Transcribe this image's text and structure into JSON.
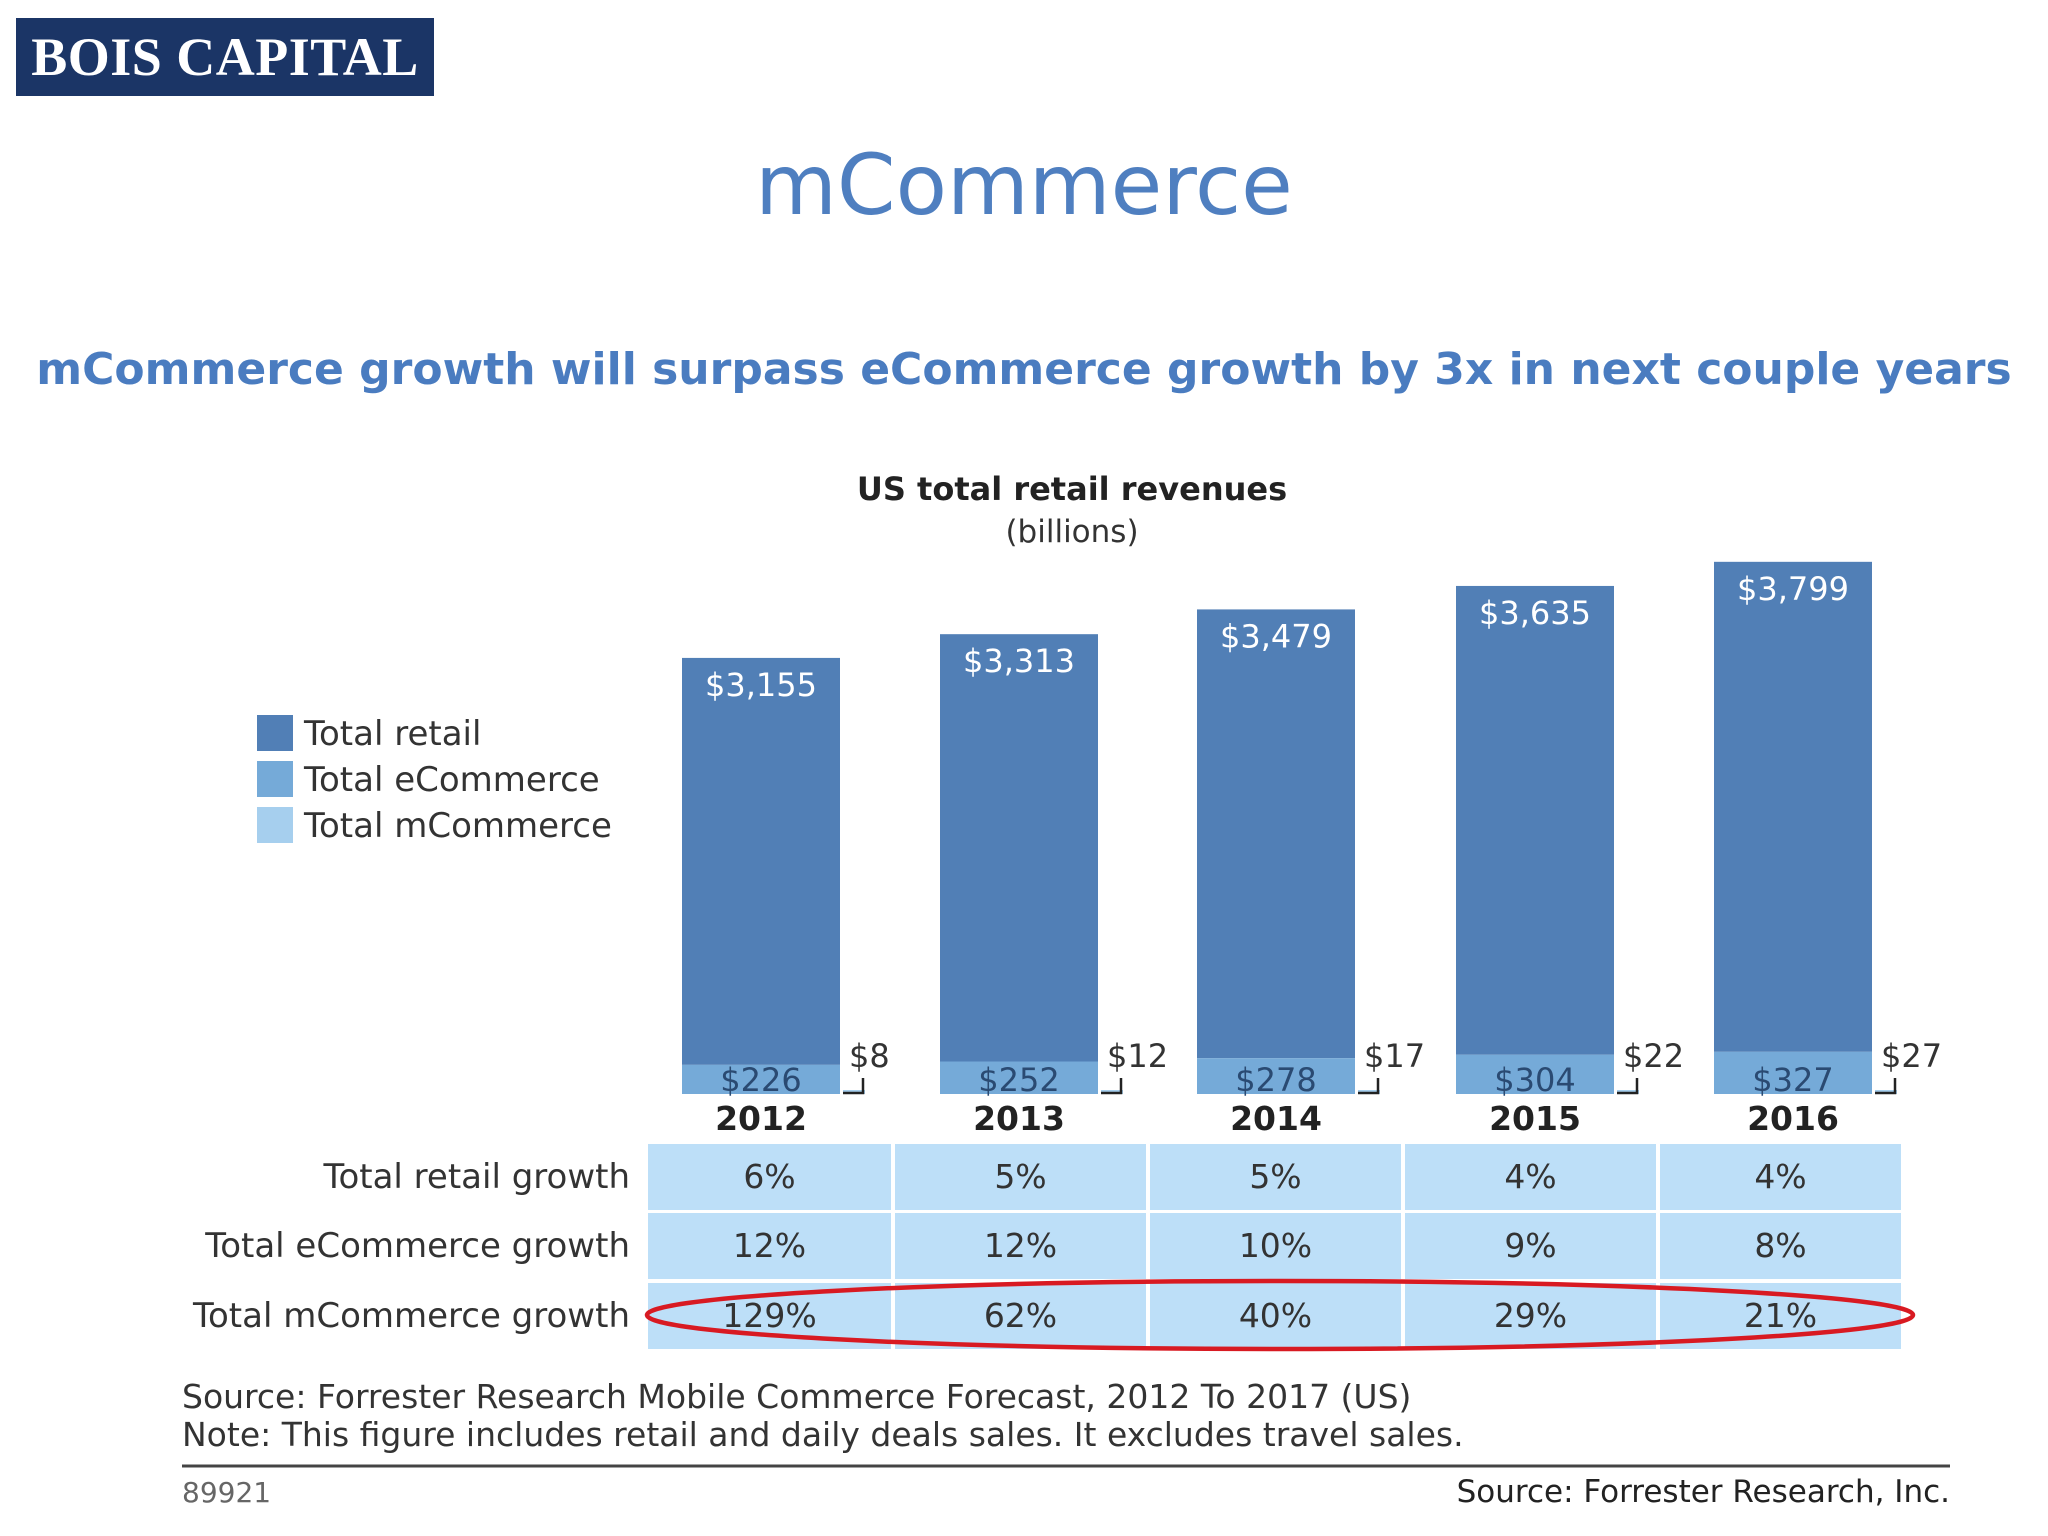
{
  "logo": {
    "text": "BOIS CAPITAL"
  },
  "page_title": "mCommerce",
  "headline": "mCommerce  growth will surpass  eCommerce growth by 3x in next couple years",
  "colors": {
    "retail": "#517fb6",
    "ecommerce": "#75aad8",
    "mcommerce": "#a6cfee",
    "table_fill": "#bddff8",
    "highlight_ellipse": "#d81a22",
    "brand": "#1b3566"
  },
  "chart_data": {
    "type": "bar",
    "title": "US total retail revenues",
    "subtitle": "(billions)",
    "categories": [
      "2012",
      "2013",
      "2014",
      "2015",
      "2016"
    ],
    "series": [
      {
        "name": "Total retail",
        "values": [
          3155,
          3313,
          3479,
          3635,
          3799
        ],
        "labels": [
          "$3,155",
          "$3,313",
          "$3,479",
          "$3,635",
          "$3,799"
        ]
      },
      {
        "name": "Total eCommerce",
        "values": [
          226,
          252,
          278,
          304,
          327
        ],
        "labels": [
          "$226",
          "$252",
          "$278",
          "$304",
          "$327"
        ]
      },
      {
        "name": "Total mCommerce",
        "values": [
          8,
          12,
          17,
          22,
          27
        ],
        "labels": [
          "$8",
          "$12",
          "$17",
          "$22",
          "$27"
        ]
      }
    ],
    "legend_position": "left",
    "growth_table": {
      "rows": [
        {
          "label": "Total retail growth",
          "values": [
            "6%",
            "5%",
            "5%",
            "4%",
            "4%"
          ]
        },
        {
          "label": "Total eCommerce growth",
          "values": [
            "12%",
            "12%",
            "10%",
            "9%",
            "8%"
          ]
        },
        {
          "label": "Total mCommerce growth",
          "values": [
            "129%",
            "62%",
            "40%",
            "29%",
            "21%"
          ]
        }
      ],
      "highlighted_row": "Total mCommerce growth"
    },
    "source_lines": [
      "Source: Forrester Research Mobile Commerce Forecast, 2012 To 2017 (US)",
      "Note: This figure includes retail and daily deals sales. It excludes travel sales."
    ],
    "figure_id": "89921",
    "credit": "Source: Forrester Research, Inc."
  }
}
